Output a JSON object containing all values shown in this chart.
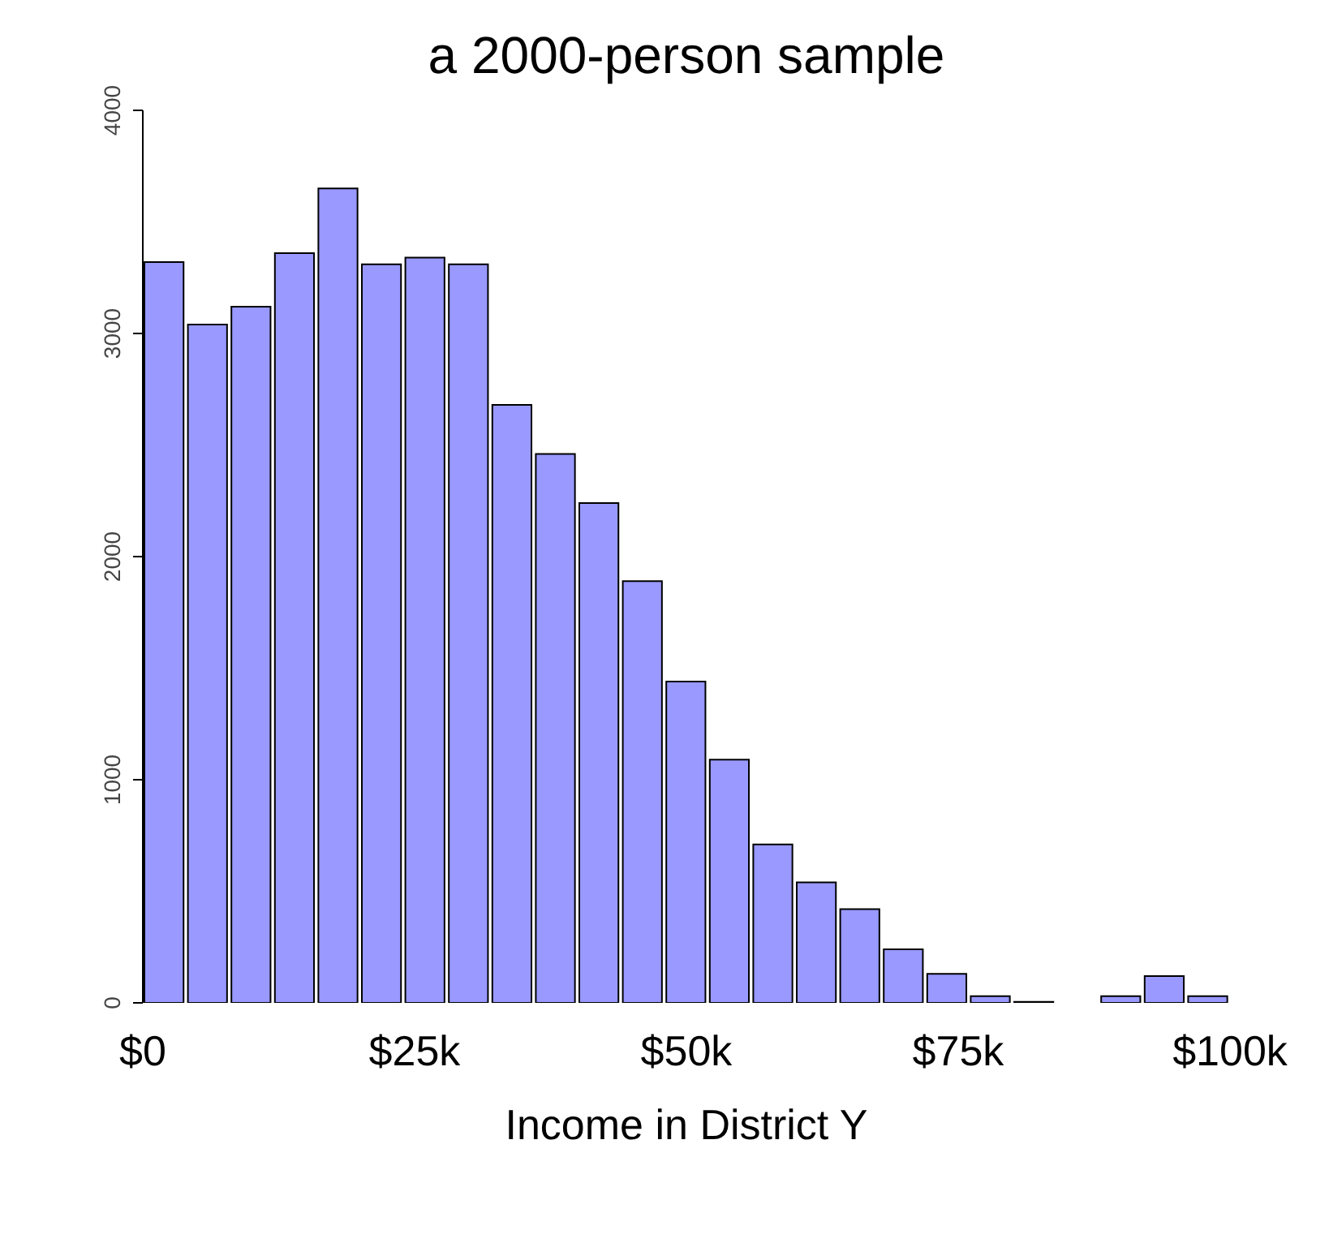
{
  "chart_data": {
    "type": "histogram",
    "title": "a 2000-person sample",
    "xlabel": "Income in District Y",
    "color": "#9999ff",
    "bins": [
      0,
      4,
      8,
      12,
      16,
      20,
      24,
      28,
      32,
      36,
      40,
      44,
      48,
      52,
      56,
      60,
      64,
      68,
      72,
      76,
      80,
      84,
      88,
      92,
      96,
      100
    ],
    "values": [
      3320,
      3040,
      3120,
      3360,
      3650,
      3310,
      3340,
      3310,
      2680,
      2460,
      2240,
      1890,
      1440,
      1090,
      710,
      540,
      420,
      240,
      130,
      30,
      5,
      0,
      30,
      120,
      30
    ],
    "xlim": [
      0,
      100
    ],
    "xticks": [
      {
        "value": 0,
        "label": "$0"
      },
      {
        "value": 25,
        "label": "$25k"
      },
      {
        "value": 50,
        "label": "$50k"
      },
      {
        "value": 75,
        "label": "$75k"
      },
      {
        "value": 100,
        "label": "$100k"
      }
    ],
    "ylim": [
      0,
      4000
    ],
    "yticks": [
      0,
      1000,
      2000,
      3000,
      4000
    ]
  }
}
